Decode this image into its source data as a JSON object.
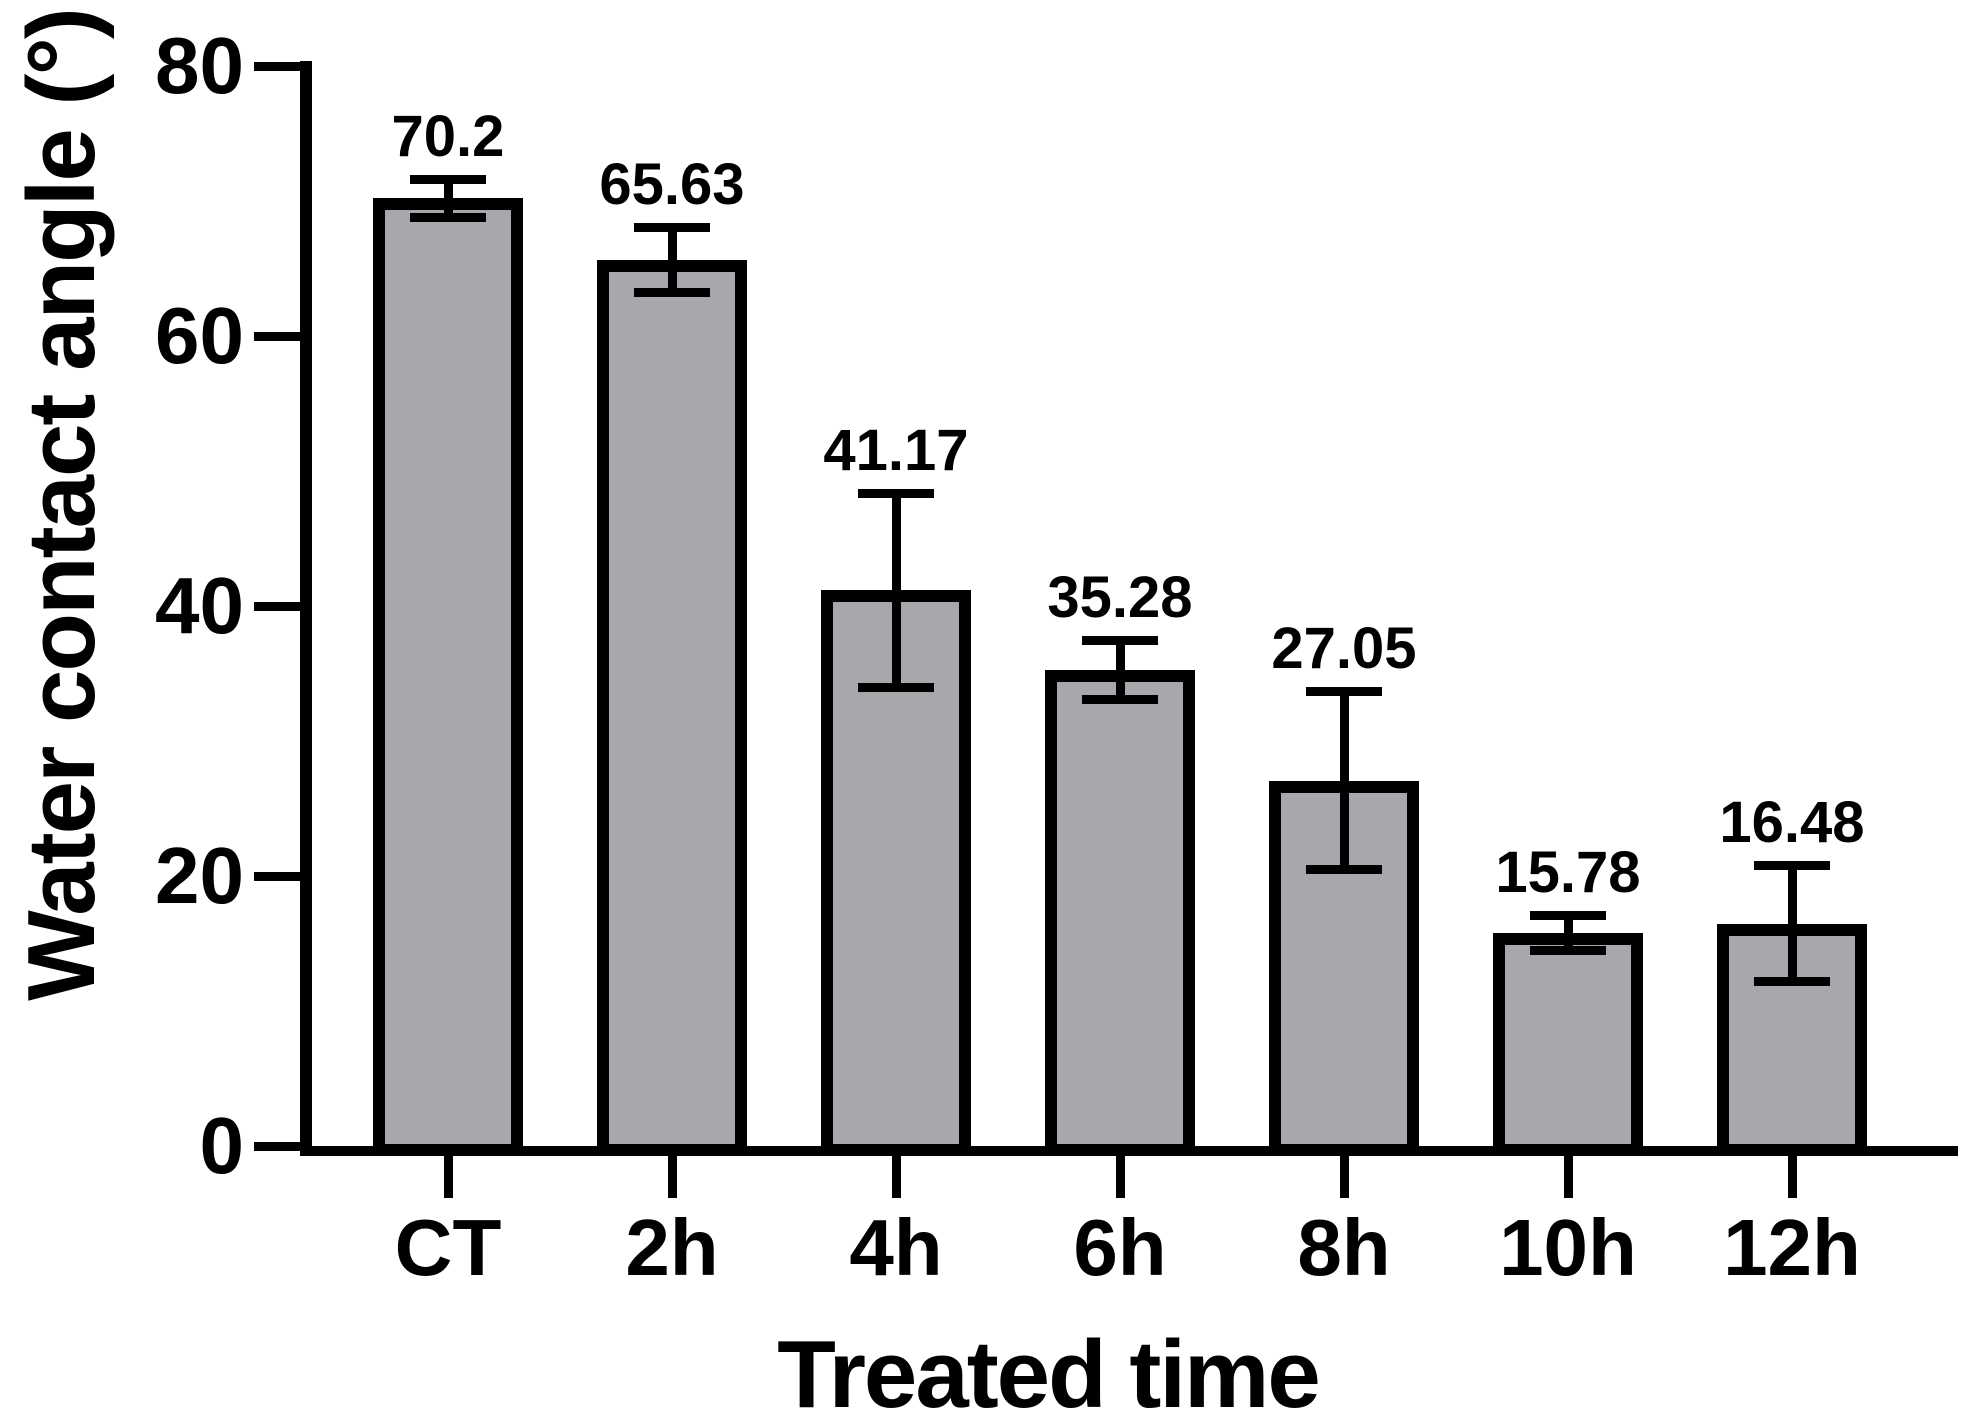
{
  "figure": {
    "title": ""
  },
  "chart_data": {
    "type": "bar",
    "title": "",
    "xlabel": "Treated time",
    "ylabel": "Water contact angle (°)",
    "categories": [
      "CT",
      "2h",
      "4h",
      "6h",
      "8h",
      "10h",
      "12h"
    ],
    "values": [
      70.2,
      65.63,
      41.17,
      35.28,
      27.05,
      15.78,
      16.48
    ],
    "value_labels": [
      "70.2",
      "65.63",
      "41.17",
      "35.28",
      "27.05",
      "15.78",
      "16.48"
    ],
    "errors": [
      1.4,
      2.4,
      7.2,
      2.2,
      6.6,
      1.3,
      4.3
    ],
    "error_style": "symmetric-caps",
    "ylim": [
      0,
      80
    ],
    "yticks": [
      0,
      20,
      40,
      60,
      80
    ],
    "grid": false,
    "legend": null,
    "bar_fill_color": "#a8a7ab",
    "bar_border_color": "#000000",
    "axis_color": "#000000",
    "text_color": "#000000",
    "background_color": "#ffffff"
  }
}
